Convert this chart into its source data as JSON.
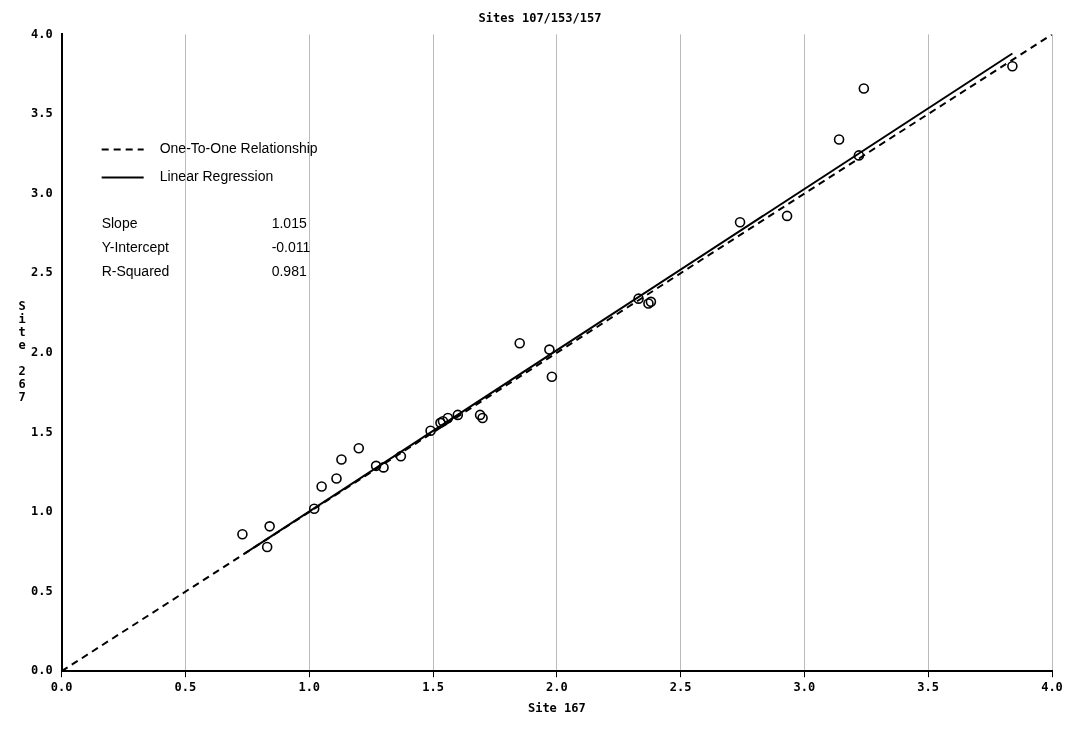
{
  "chart_data": {
    "type": "scatter",
    "title": "Sites 107/153/157",
    "xlabel": "Site 167",
    "ylabel": "Site 267",
    "xlim": [
      0,
      4
    ],
    "ylim": [
      0,
      4
    ],
    "xticks": [
      {
        "value": 0,
        "label": "0.0"
      },
      {
        "value": 0.5,
        "label": "0.5"
      },
      {
        "value": 1,
        "label": "1.0"
      },
      {
        "value": 1.5,
        "label": "1.5"
      },
      {
        "value": 2,
        "label": "2.0"
      },
      {
        "value": 2.5,
        "label": "2.5"
      },
      {
        "value": 3,
        "label": "3.0"
      },
      {
        "value": 3.5,
        "label": "3.5"
      },
      {
        "value": 4,
        "label": "4.0"
      }
    ],
    "yticks": [
      {
        "value": 0,
        "label": "0.0"
      },
      {
        "value": 0.5,
        "label": "0.5"
      },
      {
        "value": 1,
        "label": "1.0"
      },
      {
        "value": 1.5,
        "label": "1.5"
      },
      {
        "value": 2,
        "label": "2.0"
      },
      {
        "value": 2.5,
        "label": "2.5"
      },
      {
        "value": 3,
        "label": "3.0"
      },
      {
        "value": 3.5,
        "label": "3.5"
      },
      {
        "value": 4,
        "label": "4.0"
      }
    ],
    "grid": "x",
    "legend": "top left",
    "series": [
      {
        "type": "scatter",
        "marker": "circle",
        "color": "#000000",
        "x": [
          0.73,
          0.83,
          0.84,
          1.02,
          1.05,
          1.11,
          1.13,
          1.2,
          1.27,
          1.3,
          1.37,
          1.49,
          1.53,
          1.54,
          1.56,
          1.6,
          1.69,
          1.7,
          1.85,
          1.97,
          1.98,
          2.33,
          2.37,
          2.38,
          2.74,
          2.93,
          3.14,
          3.22,
          3.24,
          3.84
        ],
        "values": [
          0.86,
          0.78,
          0.91,
          1.02,
          1.16,
          1.21,
          1.33,
          1.4,
          1.29,
          1.28,
          1.35,
          1.51,
          1.56,
          1.57,
          1.59,
          1.61,
          1.61,
          1.59,
          2.06,
          2.02,
          1.85,
          2.34,
          2.31,
          2.32,
          2.82,
          2.86,
          3.34,
          3.24,
          3.66,
          3.8
        ]
      },
      {
        "type": "line",
        "name": "One-To-One Relationship",
        "color": "#000000",
        "line_style": "dashed",
        "marker": "none",
        "x": [
          0,
          4
        ],
        "values": [
          0,
          4
        ]
      },
      {
        "type": "line",
        "name": "Linear Regression",
        "color": "#000000",
        "line_style": "solid",
        "marker": "none",
        "x": [
          0.74,
          3.84
        ],
        "values": [
          0.74,
          3.88
        ]
      }
    ],
    "annotations": [
      "Slope",
      "1.015",
      "Y-Intercept",
      "-0.011",
      "R-Squared",
      "0.981"
    ]
  }
}
